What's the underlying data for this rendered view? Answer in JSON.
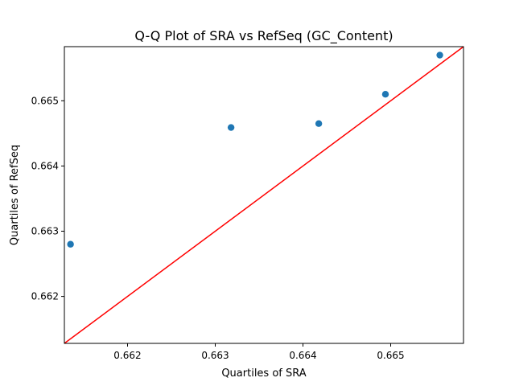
{
  "chart_data": {
    "type": "scatter",
    "title": "Q-Q Plot of SRA vs RefSeq (GC_Content)",
    "xlabel": "Quartiles of SRA",
    "ylabel": "Quartiles of RefSeq",
    "xlim": [
      0.66128,
      0.66583
    ],
    "ylim": [
      0.66128,
      0.66583
    ],
    "xticks": [
      0.662,
      0.663,
      0.664,
      0.665
    ],
    "xtick_labels": [
      "0.662",
      "0.663",
      "0.664",
      "0.665"
    ],
    "yticks": [
      0.662,
      0.663,
      0.664,
      0.665
    ],
    "ytick_labels": [
      "0.662",
      "0.663",
      "0.664",
      "0.665"
    ],
    "grid": false,
    "series": [
      {
        "x": [
          0.66135,
          0.66318,
          0.66418,
          0.66494,
          0.66556
        ],
        "y": [
          0.6628,
          0.66459,
          0.66465,
          0.6651,
          0.6657
        ],
        "color": "#1f77b4",
        "marker": "circle"
      }
    ],
    "reference_line": {
      "type": "y=x",
      "color": "#ff0000"
    }
  }
}
